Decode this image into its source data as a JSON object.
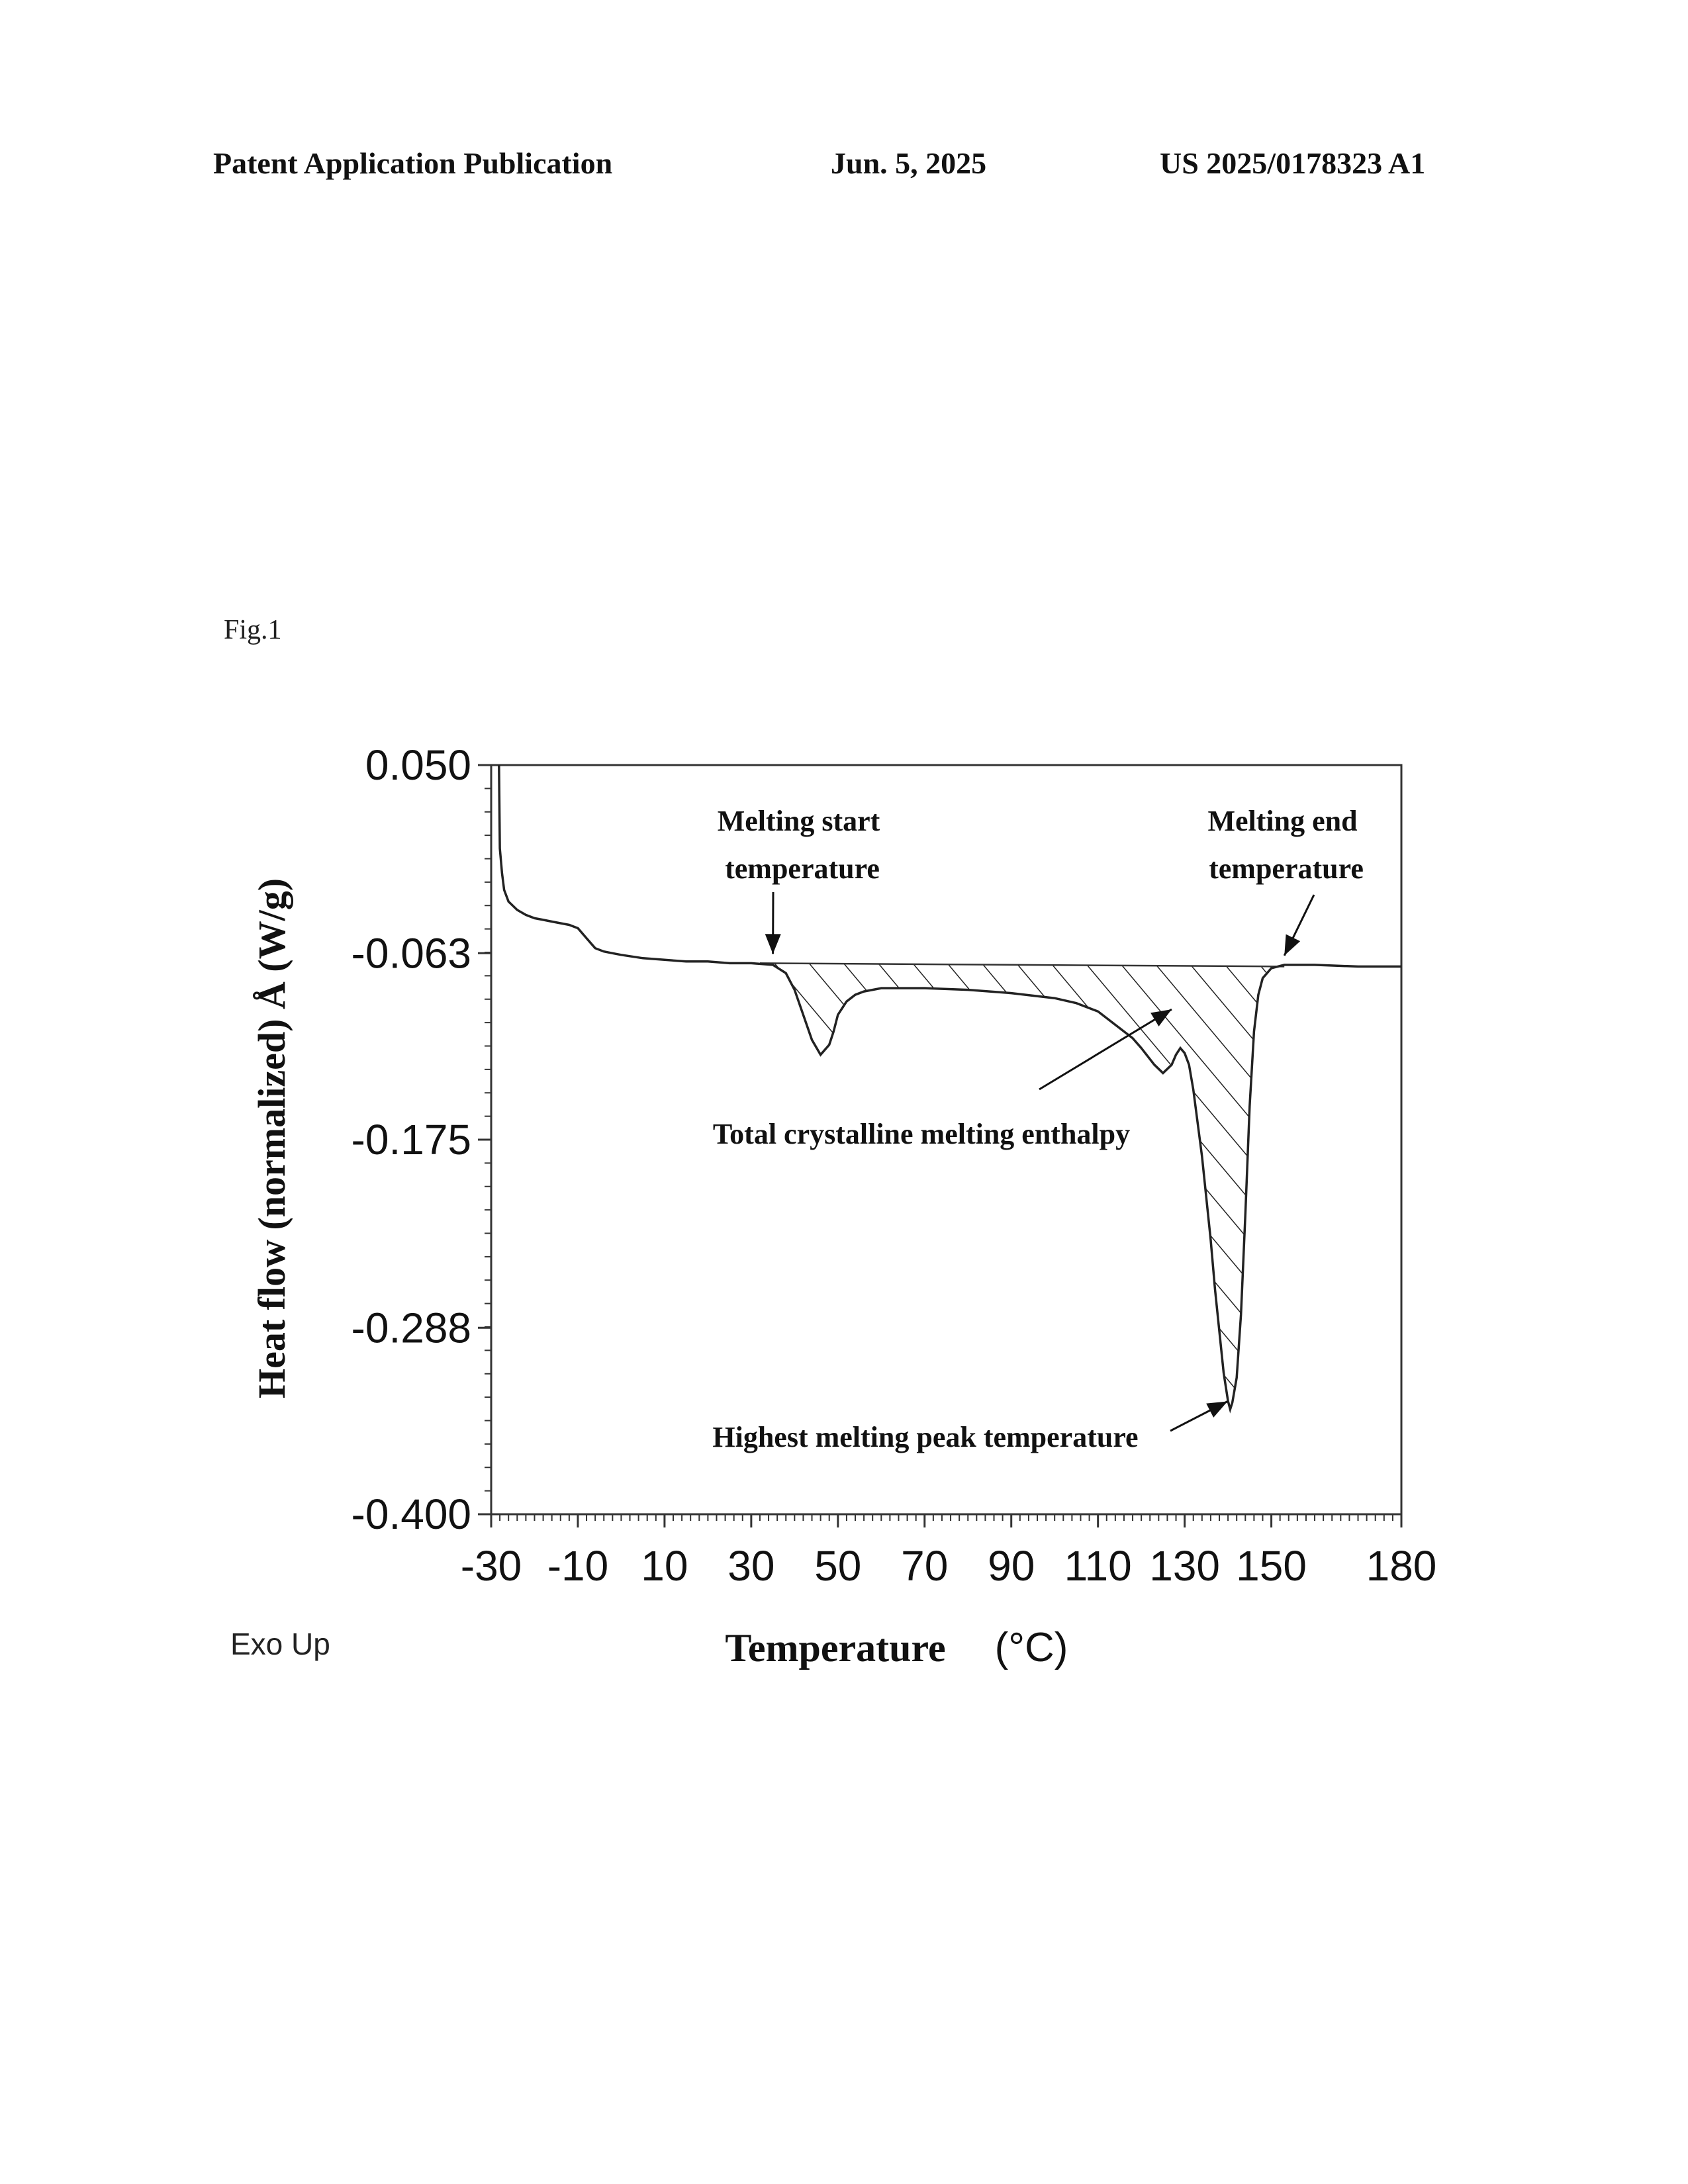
{
  "header": {
    "left": "Patent Application Publication",
    "center": "Jun. 5, 2025",
    "right": "US 2025/0178323 A1"
  },
  "figure_label": "Fig.1",
  "chart_data": {
    "type": "line",
    "title": "",
    "xlabel": "Temperature",
    "xunit": "(°C)",
    "ylabel": "Heat flow (normalized) Å (W/g)",
    "corner_note": "Exo Up",
    "xlim": [
      -30,
      180
    ],
    "ylim": [
      -0.4,
      0.05
    ],
    "x_ticks": [
      -30,
      -10,
      10,
      30,
      50,
      70,
      90,
      110,
      130,
      150,
      180
    ],
    "x_tick_labels": [
      "-30",
      "-10",
      "10",
      "30",
      "50",
      "70",
      "90",
      "110",
      "130",
      "150",
      "180"
    ],
    "y_ticks": [
      0.05,
      -0.063,
      -0.175,
      -0.288,
      -0.4
    ],
    "y_tick_labels": [
      "0.050",
      "-0.063",
      "-0.175",
      "-0.288",
      "-0.400"
    ],
    "grid": false,
    "legend": "none",
    "series": [
      {
        "x": [
          -28.2,
          -28,
          -27.5,
          -27,
          -26,
          -24,
          -22,
          -20,
          -18,
          -16,
          -14,
          -12,
          -10,
          -8,
          -6,
          -4,
          -2,
          0,
          5,
          10,
          15,
          20,
          25,
          30,
          35,
          38,
          40,
          42,
          44,
          46,
          48,
          49,
          50,
          52,
          54,
          56,
          58,
          60,
          62,
          65,
          70,
          80,
          90,
          100,
          105,
          110,
          115,
          118,
          120,
          123,
          125,
          127,
          128,
          129,
          130,
          131,
          132,
          134,
          136,
          137,
          138,
          139,
          140,
          140.5,
          141,
          142,
          143,
          144,
          145,
          146,
          147,
          148,
          150,
          153,
          156,
          160,
          170,
          180
        ],
        "y": [
          0.05,
          0.0,
          -0.015,
          -0.025,
          -0.032,
          -0.037,
          -0.04,
          -0.042,
          -0.043,
          -0.044,
          -0.045,
          -0.046,
          -0.048,
          -0.054,
          -0.06,
          -0.062,
          -0.063,
          -0.064,
          -0.066,
          -0.067,
          -0.068,
          -0.068,
          -0.069,
          -0.069,
          -0.07,
          -0.075,
          -0.085,
          -0.1,
          -0.115,
          -0.124,
          -0.118,
          -0.11,
          -0.1,
          -0.092,
          -0.088,
          -0.086,
          -0.085,
          -0.084,
          -0.084,
          -0.084,
          -0.084,
          -0.085,
          -0.087,
          -0.09,
          -0.093,
          -0.098,
          -0.108,
          -0.114,
          -0.12,
          -0.13,
          -0.135,
          -0.13,
          -0.124,
          -0.12,
          -0.123,
          -0.13,
          -0.145,
          -0.185,
          -0.235,
          -0.265,
          -0.29,
          -0.315,
          -0.332,
          -0.337,
          -0.333,
          -0.318,
          -0.28,
          -0.22,
          -0.155,
          -0.11,
          -0.088,
          -0.078,
          -0.072,
          -0.07,
          -0.07,
          -0.07,
          -0.071,
          -0.071
        ]
      }
    ],
    "baseline": {
      "x": [
        32,
        153
      ],
      "y": [
        -0.069,
        -0.071
      ]
    },
    "annotations": [
      {
        "text": "Melting start\ntemperature",
        "x": 35,
        "y": -0.069
      },
      {
        "text": "Melting end\ntemperature",
        "x": 153,
        "y": -0.07
      },
      {
        "text": "Total crystalline melting enthalpy",
        "x": 127,
        "y": -0.088
      },
      {
        "text": "Highest melting peak temperature",
        "x": 140.5,
        "y": -0.337
      }
    ]
  }
}
